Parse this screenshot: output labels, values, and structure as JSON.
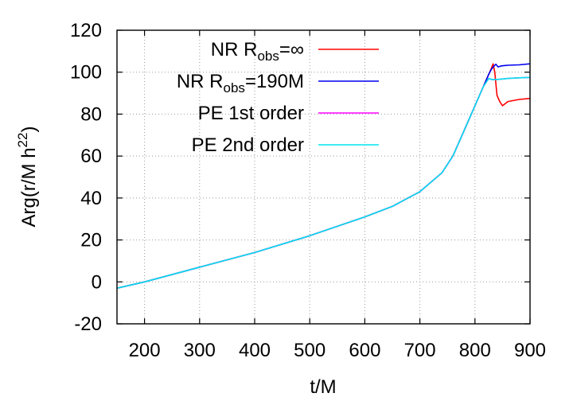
{
  "chart_data": {
    "type": "line",
    "title": "",
    "xlabel": "t/M",
    "ylabel": {
      "base": "Arg(r/M h",
      "sup": "22",
      "close": ")"
    },
    "xlim": [
      150,
      900
    ],
    "ylim": [
      -20,
      120
    ],
    "xticks": [
      200,
      300,
      400,
      500,
      600,
      700,
      800,
      900
    ],
    "yticks": [
      -20,
      0,
      20,
      40,
      60,
      80,
      100,
      120
    ],
    "grid": true,
    "legend_position": "top-right",
    "series": [
      {
        "name": "NR R_obs=∞",
        "label": {
          "pre": "NR R",
          "sub": "obs",
          "post": "=∞"
        },
        "color": "#ff0000",
        "x": [
          150,
          200,
          300,
          400,
          500,
          600,
          650,
          700,
          740,
          760,
          780,
          800,
          815,
          825,
          830,
          833,
          836,
          840,
          845,
          850,
          860,
          880,
          900
        ],
        "y": [
          -3,
          0,
          7,
          14,
          22,
          31,
          36,
          43,
          52,
          60,
          72,
          84,
          93,
          99,
          102,
          104,
          100,
          89,
          86,
          84,
          86,
          87,
          87.5
        ]
      },
      {
        "name": "NR R_obs=190M",
        "label": {
          "pre": "NR R",
          "sub": "obs",
          "post": "=190M"
        },
        "color": "#0000ee",
        "x": [
          150,
          200,
          300,
          400,
          500,
          600,
          650,
          700,
          740,
          760,
          780,
          800,
          815,
          825,
          830,
          835,
          838,
          842,
          848,
          860,
          880,
          900
        ],
        "y": [
          -3,
          0,
          7,
          14,
          22,
          31,
          36,
          43,
          52,
          60,
          72,
          84,
          93,
          99,
          101.5,
          103,
          103.8,
          102.5,
          103,
          103.3,
          103.5,
          104
        ]
      },
      {
        "name": "PE 1st order",
        "label": {
          "pre": "PE 1st order",
          "sub": "",
          "post": ""
        },
        "color": "#ff00ff",
        "x": [
          150,
          200,
          300,
          400,
          500,
          600,
          650,
          700,
          740,
          760,
          780,
          800,
          815,
          825,
          830,
          840,
          860,
          880,
          900
        ],
        "y": [
          -3,
          0,
          7,
          14,
          22,
          31,
          36,
          43,
          52,
          60,
          72,
          84,
          93,
          97,
          96.5,
          96.5,
          97,
          97.3,
          97.5
        ]
      },
      {
        "name": "PE 2nd order",
        "label": {
          "pre": "PE 2nd order",
          "sub": "",
          "post": ""
        },
        "color": "#00e5ee",
        "x": [
          150,
          200,
          300,
          400,
          500,
          600,
          650,
          700,
          740,
          760,
          780,
          800,
          815,
          825,
          830,
          840,
          860,
          880,
          900
        ],
        "y": [
          -3,
          0,
          7,
          14,
          22,
          31,
          36,
          43,
          52,
          60,
          72,
          84,
          93,
          97,
          96.5,
          96.5,
          97,
          97.3,
          97.5
        ]
      }
    ]
  }
}
